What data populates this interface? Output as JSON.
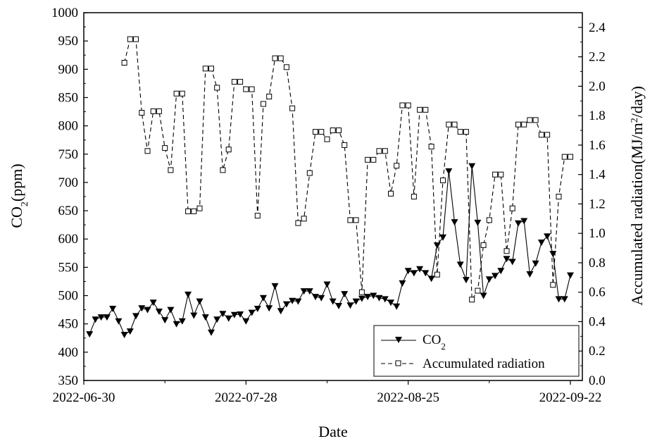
{
  "chart_data": {
    "type": "line",
    "xlabel": "Date",
    "ylabel_left": "CO2(ppm)",
    "ylabel_left_main": "CO",
    "ylabel_left_sub": "2",
    "ylabel_left_tail": "(ppm)",
    "ylabel_right": "Accumulated radiation(MJ/m2/day)",
    "ylabel_right_pre": "Accumulated radiation(MJ/m",
    "ylabel_right_sup": "2",
    "ylabel_right_post": "/day)",
    "x_tick_labels": [
      "2022-06-30",
      "2022-07-28",
      "2022-08-25",
      "2022-09-22"
    ],
    "xlim": [
      "2022-06-30",
      "2022-09-22"
    ],
    "ylim_left": [
      350,
      1000
    ],
    "ylim_right": [
      0.0,
      2.5
    ],
    "y_left_ticks": [
      350,
      400,
      450,
      500,
      550,
      600,
      650,
      700,
      750,
      800,
      850,
      900,
      950,
      1000
    ],
    "y_right_ticks": [
      "0.0",
      "0.2",
      "0.4",
      "0.6",
      "0.8",
      "1.0",
      "1.2",
      "1.4",
      "1.6",
      "1.8",
      "2.0",
      "2.2",
      "2.4"
    ],
    "legend": {
      "placement": "bottom-right",
      "co2_main": "CO",
      "co2_sub": "2",
      "radiation": "Accumulated radiation"
    },
    "series": [
      {
        "name": "CO2",
        "axis": "left",
        "style": "solid",
        "marker": "filled-down-triangle",
        "points": [
          [
            "2022-07-01",
            432
          ],
          [
            "2022-07-02",
            458
          ],
          [
            "2022-07-03",
            462
          ],
          [
            "2022-07-04",
            462
          ],
          [
            "2022-07-05",
            477
          ],
          [
            "2022-07-06",
            455
          ],
          [
            "2022-07-07",
            431
          ],
          [
            "2022-07-08",
            437
          ],
          [
            "2022-07-09",
            464
          ],
          [
            "2022-07-10",
            478
          ],
          [
            "2022-07-11",
            475
          ],
          [
            "2022-07-12",
            488
          ],
          [
            "2022-07-13",
            472
          ],
          [
            "2022-07-14",
            457
          ],
          [
            "2022-07-15",
            475
          ],
          [
            "2022-07-16",
            450
          ],
          [
            "2022-07-17",
            455
          ],
          [
            "2022-07-18",
            502
          ],
          [
            "2022-07-19",
            465
          ],
          [
            "2022-07-20",
            490
          ],
          [
            "2022-07-21",
            462
          ],
          [
            "2022-07-22",
            435
          ],
          [
            "2022-07-23",
            458
          ],
          [
            "2022-07-24",
            468
          ],
          [
            "2022-07-25",
            460
          ],
          [
            "2022-07-26",
            466
          ],
          [
            "2022-07-27",
            467
          ],
          [
            "2022-07-28",
            455
          ],
          [
            "2022-07-29",
            470
          ],
          [
            "2022-07-30",
            477
          ],
          [
            "2022-07-31",
            496
          ],
          [
            "2022-08-01",
            478
          ],
          [
            "2022-08-02",
            517
          ],
          [
            "2022-08-03",
            473
          ],
          [
            "2022-08-04",
            485
          ],
          [
            "2022-08-05",
            491
          ],
          [
            "2022-08-06",
            490
          ],
          [
            "2022-08-07",
            508
          ],
          [
            "2022-08-08",
            508
          ],
          [
            "2022-08-09",
            498
          ],
          [
            "2022-08-10",
            496
          ],
          [
            "2022-08-11",
            520
          ],
          [
            "2022-08-12",
            490
          ],
          [
            "2022-08-13",
            482
          ],
          [
            "2022-08-14",
            503
          ],
          [
            "2022-08-15",
            483
          ],
          [
            "2022-08-16",
            490
          ],
          [
            "2022-08-17",
            495
          ],
          [
            "2022-08-18",
            498
          ],
          [
            "2022-08-19",
            500
          ],
          [
            "2022-08-20",
            496
          ],
          [
            "2022-08-21",
            494
          ],
          [
            "2022-08-22",
            488
          ],
          [
            "2022-08-23",
            481
          ],
          [
            "2022-08-24",
            522
          ],
          [
            "2022-08-25",
            544
          ],
          [
            "2022-08-26",
            540
          ],
          [
            "2022-08-27",
            547
          ],
          [
            "2022-08-28",
            540
          ],
          [
            "2022-08-29",
            530
          ],
          [
            "2022-08-30",
            589
          ],
          [
            "2022-08-31",
            603
          ],
          [
            "2022-09-01",
            720
          ],
          [
            "2022-09-02",
            630
          ],
          [
            "2022-09-03",
            555
          ],
          [
            "2022-09-04",
            528
          ],
          [
            "2022-09-05",
            729
          ],
          [
            "2022-09-06",
            629
          ],
          [
            "2022-09-07",
            500
          ],
          [
            "2022-09-08",
            529
          ],
          [
            "2022-09-09",
            535
          ],
          [
            "2022-09-10",
            544
          ],
          [
            "2022-09-11",
            565
          ],
          [
            "2022-09-12",
            560
          ],
          [
            "2022-09-13",
            628
          ],
          [
            "2022-09-14",
            632
          ],
          [
            "2022-09-15",
            538
          ],
          [
            "2022-09-16",
            557
          ],
          [
            "2022-09-17",
            594
          ],
          [
            "2022-09-18",
            605
          ],
          [
            "2022-09-19",
            574
          ],
          [
            "2022-09-20",
            494
          ],
          [
            "2022-09-21",
            494
          ],
          [
            "2022-09-22",
            536
          ]
        ]
      },
      {
        "name": "Accumulated radiation",
        "axis": "right",
        "style": "dashed",
        "marker": "hollow-square",
        "points": [
          [
            "2022-07-07",
            2.16
          ],
          [
            "2022-07-08",
            2.32
          ],
          [
            "2022-07-09",
            2.32
          ],
          [
            "2022-07-10",
            1.82
          ],
          [
            "2022-07-11",
            1.56
          ],
          [
            "2022-07-12",
            1.83
          ],
          [
            "2022-07-13",
            1.83
          ],
          [
            "2022-07-14",
            1.58
          ],
          [
            "2022-07-15",
            1.43
          ],
          [
            "2022-07-16",
            1.95
          ],
          [
            "2022-07-17",
            1.95
          ],
          [
            "2022-07-18",
            1.15
          ],
          [
            "2022-07-19",
            1.15
          ],
          [
            "2022-07-20",
            1.17
          ],
          [
            "2022-07-21",
            2.12
          ],
          [
            "2022-07-22",
            2.12
          ],
          [
            "2022-07-23",
            1.99
          ],
          [
            "2022-07-24",
            1.43
          ],
          [
            "2022-07-25",
            1.57
          ],
          [
            "2022-07-26",
            2.03
          ],
          [
            "2022-07-27",
            2.03
          ],
          [
            "2022-07-28",
            1.98
          ],
          [
            "2022-07-29",
            1.98
          ],
          [
            "2022-07-30",
            1.12
          ],
          [
            "2022-07-31",
            1.88
          ],
          [
            "2022-08-01",
            1.93
          ],
          [
            "2022-08-02",
            2.19
          ],
          [
            "2022-08-03",
            2.19
          ],
          [
            "2022-08-04",
            2.13
          ],
          [
            "2022-08-05",
            1.85
          ],
          [
            "2022-08-06",
            1.07
          ],
          [
            "2022-08-07",
            1.1
          ],
          [
            "2022-08-08",
            1.41
          ],
          [
            "2022-08-09",
            1.69
          ],
          [
            "2022-08-10",
            1.69
          ],
          [
            "2022-08-11",
            1.64
          ],
          [
            "2022-08-12",
            1.7
          ],
          [
            "2022-08-13",
            1.7
          ],
          [
            "2022-08-14",
            1.6
          ],
          [
            "2022-08-15",
            1.09
          ],
          [
            "2022-08-16",
            1.09
          ],
          [
            "2022-08-17",
            0.6
          ],
          [
            "2022-08-18",
            1.5
          ],
          [
            "2022-08-19",
            1.5
          ],
          [
            "2022-08-20",
            1.56
          ],
          [
            "2022-08-21",
            1.56
          ],
          [
            "2022-08-22",
            1.27
          ],
          [
            "2022-08-23",
            1.46
          ],
          [
            "2022-08-24",
            1.87
          ],
          [
            "2022-08-25",
            1.87
          ],
          [
            "2022-08-26",
            1.25
          ],
          [
            "2022-08-27",
            1.84
          ],
          [
            "2022-08-28",
            1.84
          ],
          [
            "2022-08-29",
            1.59
          ],
          [
            "2022-08-30",
            0.72
          ],
          [
            "2022-08-31",
            1.36
          ],
          [
            "2022-09-01",
            1.74
          ],
          [
            "2022-09-02",
            1.74
          ],
          [
            "2022-09-03",
            1.69
          ],
          [
            "2022-09-04",
            1.69
          ],
          [
            "2022-09-05",
            0.55
          ],
          [
            "2022-09-06",
            0.61
          ],
          [
            "2022-09-07",
            0.92
          ],
          [
            "2022-09-08",
            1.09
          ],
          [
            "2022-09-09",
            1.4
          ],
          [
            "2022-09-10",
            1.4
          ],
          [
            "2022-09-11",
            0.88
          ],
          [
            "2022-09-12",
            1.17
          ],
          [
            "2022-09-13",
            1.74
          ],
          [
            "2022-09-14",
            1.74
          ],
          [
            "2022-09-15",
            1.77
          ],
          [
            "2022-09-16",
            1.77
          ],
          [
            "2022-09-17",
            1.67
          ],
          [
            "2022-09-18",
            1.67
          ],
          [
            "2022-09-19",
            0.65
          ],
          [
            "2022-09-20",
            1.25
          ],
          [
            "2022-09-21",
            1.52
          ],
          [
            "2022-09-22",
            1.52
          ]
        ]
      }
    ]
  }
}
